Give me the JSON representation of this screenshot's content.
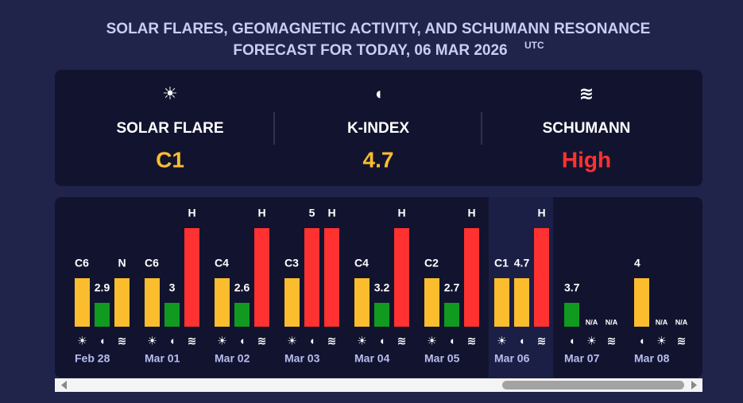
{
  "header": {
    "title_line1": "SOLAR FLARES, GEOMAGNETIC ACTIVITY, AND SCHUMANN RESONANCE",
    "title_line2": "FORECAST FOR TODAY, 06 MAR 2026",
    "utc": "UTC"
  },
  "palette": [
    "#109a1f",
    "#fbbd2e",
    "#ff3131"
  ],
  "summary": [
    {
      "icon": "☀",
      "label": "SOLAR FLARE",
      "value": "C1",
      "color": "#fbbd2e"
    },
    {
      "icon": "◖",
      "label": "K-INDEX",
      "value": "4.7",
      "color": "#fbbd2e"
    },
    {
      "icon": "≋",
      "label": "SCHUMANN",
      "value": "High",
      "color": "#ff3131"
    }
  ],
  "days": [
    {
      "date": "Feb 28",
      "bars": [
        {
          "label": "C6",
          "color": "#fbbd2e",
          "icon": "☀"
        },
        {
          "label": "2.9",
          "color": "#109a1f",
          "icon": "◖"
        },
        {
          "label": "N",
          "color": "#fbbd2e",
          "icon": "≋"
        }
      ]
    },
    {
      "date": "Mar 01",
      "bars": [
        {
          "label": "C6",
          "color": "#fbbd2e",
          "icon": "☀"
        },
        {
          "label": "3",
          "color": "#109a1f",
          "icon": "◖"
        },
        {
          "label": "H",
          "color": "#ff3131",
          "icon": "≋"
        }
      ]
    },
    {
      "date": "Mar 02",
      "bars": [
        {
          "label": "C4",
          "color": "#fbbd2e",
          "icon": "☀"
        },
        {
          "label": "2.6",
          "color": "#109a1f",
          "icon": "◖"
        },
        {
          "label": "H",
          "color": "#ff3131",
          "icon": "≋"
        }
      ]
    },
    {
      "date": "Mar 03",
      "bars": [
        {
          "label": "C3",
          "color": "#fbbd2e",
          "icon": "☀"
        },
        {
          "label": "5",
          "color": "#ff3131",
          "icon": "◖"
        },
        {
          "label": "H",
          "color": "#ff3131",
          "icon": "≋"
        }
      ]
    },
    {
      "date": "Mar 04",
      "bars": [
        {
          "label": "C4",
          "color": "#fbbd2e",
          "icon": "☀"
        },
        {
          "label": "3.2",
          "color": "#109a1f",
          "icon": "◖"
        },
        {
          "label": "H",
          "color": "#ff3131",
          "icon": "≋"
        }
      ]
    },
    {
      "date": "Mar 05",
      "bars": [
        {
          "label": "C2",
          "color": "#fbbd2e",
          "icon": "☀"
        },
        {
          "label": "2.7",
          "color": "#109a1f",
          "icon": "◖"
        },
        {
          "label": "H",
          "color": "#ff3131",
          "icon": "≋"
        }
      ]
    },
    {
      "date": "Mar 06",
      "today": true,
      "bars": [
        {
          "label": "C1",
          "color": "#fbbd2e",
          "icon": "☀"
        },
        {
          "label": "4.7",
          "color": "#fbbd2e",
          "icon": "◖"
        },
        {
          "label": "H",
          "color": "#ff3131",
          "icon": "≋"
        }
      ]
    },
    {
      "date": "Mar 07",
      "bars": [
        {
          "label": "3.7",
          "color": "#109a1f",
          "icon": "◖"
        },
        {
          "label": "N/A",
          "color": null,
          "icon": "☀"
        },
        {
          "label": "N/A",
          "color": null,
          "icon": "≋"
        }
      ]
    },
    {
      "date": "Mar 08",
      "bars": [
        {
          "label": "4",
          "color": "#fbbd2e",
          "icon": "◖"
        },
        {
          "label": "N/A",
          "color": null,
          "icon": "☀"
        },
        {
          "label": "N/A",
          "color": null,
          "icon": "≋"
        }
      ]
    }
  ]
}
